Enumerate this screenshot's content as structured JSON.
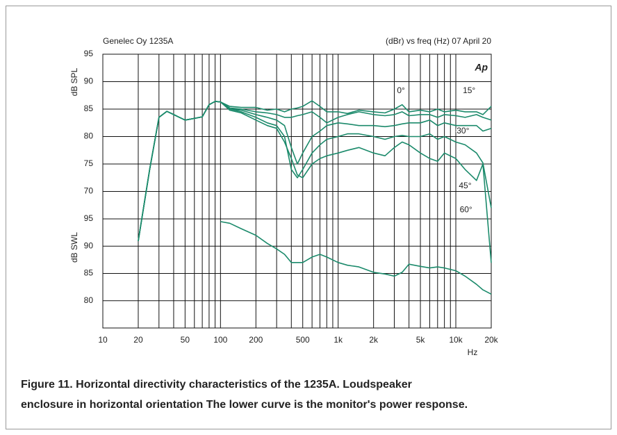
{
  "chart_data": {
    "type": "line",
    "title": "Genelec Oy 1235A",
    "subtitle": "(dBr) vs freq (Hz) 07 April 20",
    "logo": "Ap",
    "y_label": "dB SPL",
    "y2_label": "dB SWL",
    "x_label": "Hz",
    "caption": [
      "Figure 11. Horizontal directivity characteristics of the 1235A. Loudspeaker",
      "enclosure in horizontal orientation  The lower curve is the monitor's power response."
    ],
    "xscale": "log",
    "grid": true,
    "xlim": [
      10,
      20000
    ],
    "xticks": [
      10,
      20,
      50,
      100,
      200,
      500,
      {
        "value": 1000,
        "label": "1k"
      },
      {
        "value": 2000,
        "label": "2k"
      },
      {
        "value": 5000,
        "label": "5k"
      },
      {
        "value": 10000,
        "label": "10k"
      },
      {
        "value": 20000,
        "label": "20k"
      }
    ],
    "xminorticks": [
      30,
      40,
      60,
      70,
      80,
      90,
      300,
      400,
      600,
      700,
      800,
      900,
      3000,
      4000,
      6000,
      7000,
      8000,
      9000
    ],
    "ylim": [
      65,
      95
    ],
    "yticks": [
      70,
      75,
      80,
      85,
      90,
      95
    ],
    "y2lim": [
      75,
      95
    ],
    "y2ticks": [
      80,
      85,
      90,
      95
    ],
    "series": [
      {
        "name": "0°",
        "color": "#1b8a6b",
        "x": [
          20,
          25,
          30,
          35,
          40,
          50,
          60,
          70,
          80,
          90,
          100,
          120,
          150,
          200,
          250,
          300,
          350,
          400,
          450,
          500,
          600,
          700,
          800,
          1000,
          1200,
          1500,
          2000,
          2500,
          3000,
          3500,
          4000,
          5000,
          6000,
          7000,
          8000,
          10000,
          12000,
          15000,
          17000,
          20000
        ],
        "values": [
          61,
          74,
          83.5,
          84.6,
          84,
          83,
          83.3,
          83.6,
          85.8,
          86.4,
          86.3,
          85.5,
          85.3,
          85.3,
          84.8,
          85,
          84.5,
          85,
          85.2,
          85.5,
          86.5,
          85.5,
          84.5,
          84.5,
          84.2,
          84.8,
          84.5,
          84.3,
          85,
          85.8,
          84.5,
          84.8,
          84.5,
          85,
          84.5,
          84.8,
          84.5,
          84.5,
          84,
          85.5
        ]
      },
      {
        "name": "15°",
        "color": "#1b8a6b",
        "x": [
          20,
          25,
          30,
          35,
          40,
          50,
          60,
          70,
          80,
          90,
          100,
          120,
          150,
          200,
          250,
          300,
          350,
          400,
          450,
          500,
          600,
          700,
          800,
          1000,
          1200,
          1500,
          2000,
          2500,
          3000,
          3500,
          4000,
          5000,
          6000,
          7000,
          8000,
          10000,
          12000,
          15000,
          17000,
          20000
        ],
        "values": [
          61,
          74,
          83.5,
          84.6,
          84,
          83,
          83.3,
          83.6,
          85.8,
          86.4,
          86.3,
          85.2,
          85,
          84.5,
          84.3,
          84,
          83.5,
          83.5,
          83.8,
          84,
          84.5,
          83.5,
          82.5,
          83.5,
          84,
          84.5,
          84,
          83.8,
          84,
          84.5,
          83.8,
          84,
          84,
          83.5,
          84,
          83.8,
          83.5,
          84,
          83.5,
          83
        ]
      },
      {
        "name": "30°",
        "color": "#1b8a6b",
        "x": [
          20,
          25,
          30,
          35,
          40,
          50,
          60,
          70,
          80,
          90,
          100,
          120,
          150,
          200,
          250,
          300,
          350,
          400,
          450,
          500,
          600,
          700,
          800,
          1000,
          1200,
          1500,
          2000,
          2500,
          3000,
          3500,
          4000,
          5000,
          6000,
          7000,
          8000,
          10000,
          12000,
          15000,
          17000,
          20000
        ],
        "values": [
          61,
          74,
          83.5,
          84.6,
          84,
          83,
          83.3,
          83.6,
          85.8,
          86.4,
          86.3,
          85,
          84.8,
          84,
          83.5,
          83,
          82,
          78,
          75,
          77,
          80,
          81,
          82,
          82.5,
          82.3,
          82,
          82,
          81.8,
          82,
          82.3,
          82.5,
          82.5,
          83,
          82,
          82.5,
          82,
          82,
          82,
          81,
          81.5
        ]
      },
      {
        "name": "45°",
        "color": "#1b8a6b",
        "x": [
          20,
          25,
          30,
          35,
          40,
          50,
          60,
          70,
          80,
          90,
          100,
          120,
          150,
          200,
          250,
          300,
          350,
          400,
          450,
          500,
          600,
          700,
          800,
          1000,
          1200,
          1500,
          2000,
          2500,
          3000,
          3500,
          4000,
          5000,
          6000,
          7000,
          8000,
          10000,
          12000,
          15000,
          17000,
          20000
        ],
        "values": [
          61,
          74,
          83.5,
          84.6,
          84,
          83,
          83.3,
          83.6,
          85.8,
          86.4,
          86.3,
          85,
          84.5,
          83.5,
          82.5,
          82,
          80,
          74,
          72.5,
          74,
          77,
          78.5,
          79.5,
          80,
          80.5,
          80.5,
          80,
          79.5,
          80,
          80.2,
          80,
          80,
          80.5,
          79.5,
          80,
          79,
          78.5,
          77,
          75.2,
          67
        ]
      },
      {
        "name": "60°",
        "color": "#1b8a6b",
        "x": [
          20,
          25,
          30,
          35,
          40,
          50,
          60,
          70,
          80,
          90,
          100,
          120,
          150,
          200,
          250,
          300,
          350,
          400,
          450,
          500,
          600,
          700,
          800,
          1000,
          1200,
          1500,
          2000,
          2500,
          3000,
          3500,
          4000,
          5000,
          6000,
          7000,
          8000,
          10000,
          12000,
          15000,
          17000,
          20000
        ],
        "values": [
          61,
          74,
          83.5,
          84.6,
          84,
          83,
          83.3,
          83.6,
          85.8,
          86.4,
          86.3,
          84.8,
          84.3,
          83,
          82,
          81.5,
          79,
          76,
          73,
          72.5,
          75,
          76,
          76.5,
          77,
          77.5,
          78,
          77,
          76.5,
          78,
          79,
          78.5,
          77,
          76,
          75.5,
          77,
          76,
          74,
          72,
          75,
          57
        ]
      },
      {
        "name": "Power response",
        "color": "#1b8a6b",
        "axis": "y2",
        "x": [
          100,
          120,
          150,
          200,
          250,
          300,
          350,
          400,
          500,
          600,
          700,
          800,
          1000,
          1200,
          1500,
          2000,
          2500,
          3000,
          3500,
          4000,
          5000,
          6000,
          7000,
          8000,
          10000,
          12000,
          15000,
          17000,
          20000
        ],
        "values": [
          94.5,
          94.2,
          93.2,
          92,
          90.5,
          89.5,
          88.5,
          87,
          87,
          88,
          88.5,
          88,
          87,
          86.5,
          86.2,
          85.2,
          84.9,
          84.5,
          85.2,
          86.7,
          86.3,
          86,
          86.2,
          86,
          85.5,
          84.5,
          83,
          82,
          81.2
        ]
      }
    ],
    "annotations": [
      {
        "text": "0°",
        "x": 3420,
        "y": 88.3
      },
      {
        "text": "15°",
        "x": 12970,
        "y": 88.3
      },
      {
        "text": "30°",
        "x": 11500,
        "y": 81
      },
      {
        "text": "45°",
        "x": 12000,
        "y": 71
      },
      {
        "text": "60°",
        "x": 12200,
        "y": 66.6
      }
    ]
  }
}
